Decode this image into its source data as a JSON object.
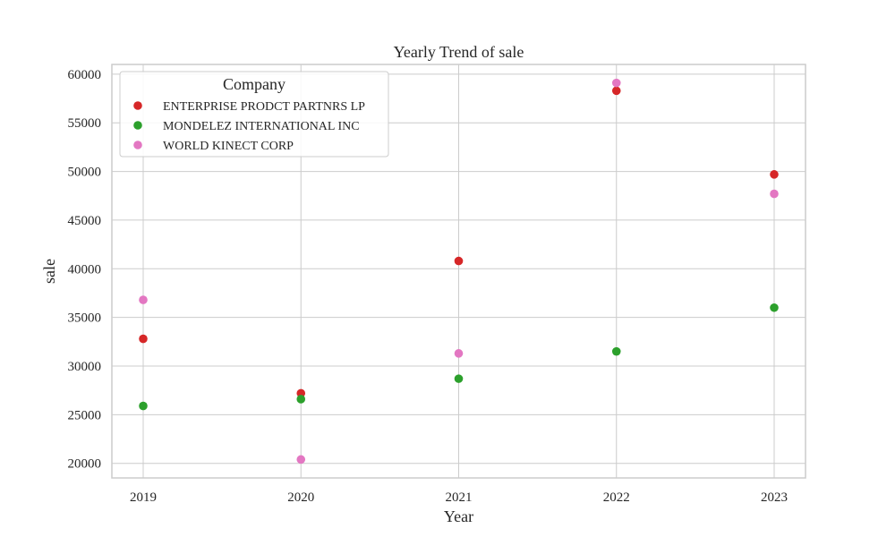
{
  "chart_data": {
    "type": "scatter",
    "title": "Yearly Trend of sale",
    "xlabel": "Year",
    "ylabel": "sale",
    "x": [
      "2019",
      "2020",
      "2021",
      "2022",
      "2023"
    ],
    "yticks": [
      "20000",
      "25000",
      "30000",
      "35000",
      "40000",
      "45000",
      "50000",
      "55000",
      "60000"
    ],
    "ylim": [
      18500,
      61000
    ],
    "grid": true,
    "legend": {
      "title": "Company",
      "placement": "top-left"
    },
    "series": [
      {
        "name": "ENTERPRISE PRODCT PARTNRS LP",
        "color": "#d62728",
        "values": [
          32800,
          27200,
          40800,
          58300,
          49700
        ]
      },
      {
        "name": "MONDELEZ INTERNATIONAL INC",
        "color": "#2ca02c",
        "values": [
          25900,
          26600,
          28700,
          31500,
          36000
        ]
      },
      {
        "name": "WORLD KINECT CORP",
        "color": "#e377c2",
        "values": [
          36800,
          20400,
          31300,
          59100,
          47700
        ]
      }
    ]
  }
}
